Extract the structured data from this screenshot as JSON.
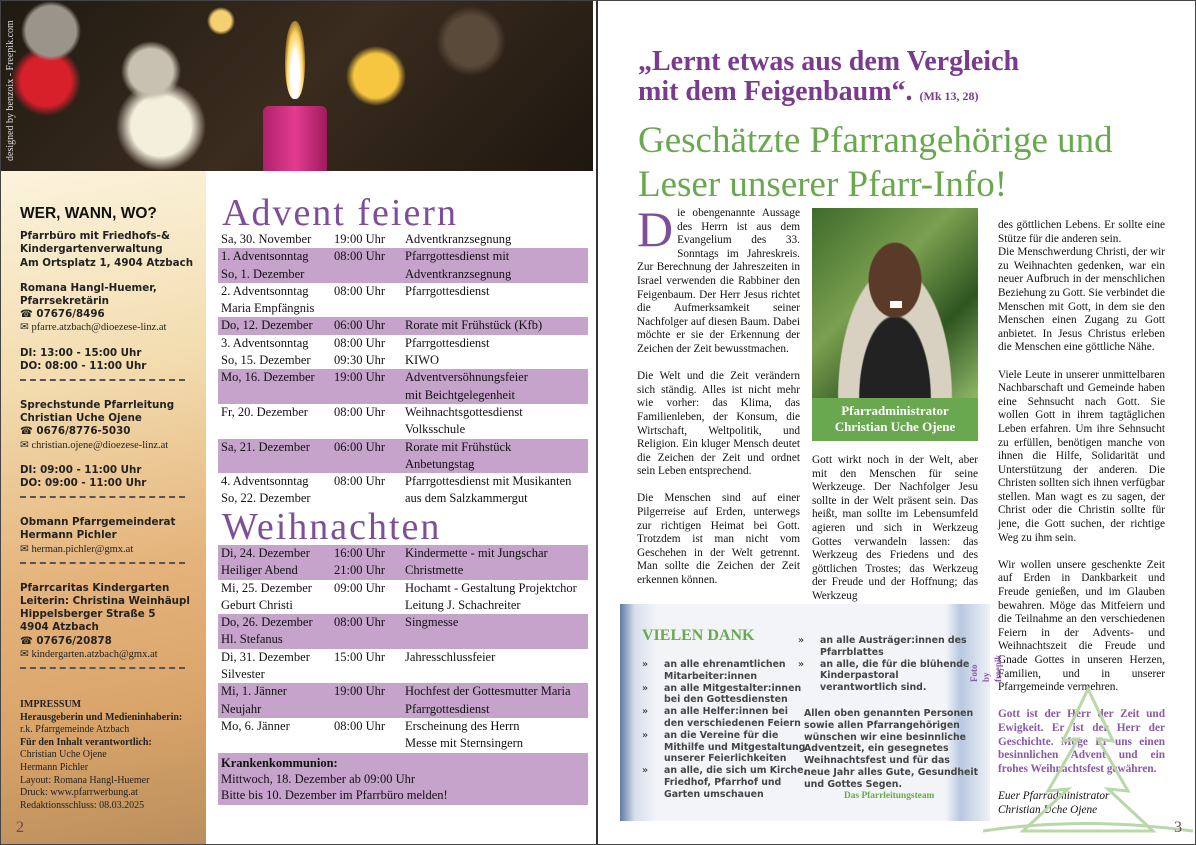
{
  "left": {
    "photo_credit": "designed by benzoix - Freepik.com",
    "sidebar": {
      "title": "WER, WANN, WO?",
      "office": [
        "Pfarrbüro mit Friedhofs-&",
        "Kindergartenverwaltung",
        "Am Ortsplatz 1, 4904 Atzbach"
      ],
      "secretary": {
        "name": "Romana Hangl-Huemer,",
        "role": "Pfarrsekretärin",
        "phone": "07676/8496",
        "email": "pfarre.atzbach@dioezese-linz.at",
        "hours": [
          "DI:  13:00 - 15:00  Uhr",
          "DO: 08:00 - 11:00  Uhr"
        ]
      },
      "leader": {
        "title": "Sprechstunde Pfarrleitung",
        "name": "Christian Uche Ojene",
        "phone": "0676/8776-5030",
        "email": "christian.ojene@dioezese-linz.at",
        "hours": [
          "DI:   09:00 - 11:00 Uhr",
          "DO:  09:00 - 11:00 Uhr"
        ]
      },
      "council": {
        "title": "Obmann Pfarrgemeinderat",
        "name": "Hermann Pichler",
        "email": "herman.pichler@gmx.at"
      },
      "kindergarten": {
        "title": "Pfarrcaritas Kindergarten",
        "leader": "Leiterin: Christina Weinhäupl",
        "street": "Hippelsberger Straße 5",
        "city": "4904 Atzbach",
        "phone": "07676/20878",
        "email": "kindergarten.atzbach@gmx.at"
      },
      "impressum": {
        "title": "IMPRESSUM",
        "l1": "Herausgeberin und Medieninhaberin:",
        "l2": "r.k. Pfarrgemeinde Atzbach",
        "l3": "Für den Inhalt verantwortlich:",
        "l4": "Christian Uche Ojene",
        "l5": "Hermann Pichler",
        "l6": "Layout: Romana Hangl-Huemer",
        "l7": "Druck: www.pfarrwerbung.at",
        "l8": "Redaktionsschluss: 08.03.2025"
      }
    },
    "advent": {
      "title": "Advent feiern",
      "rows": [
        {
          "d": "Sa, 30. November",
          "t": "19:00 Uhr",
          "e": "Adventkranzsegnung"
        },
        {
          "d": "1. Adventsonntag",
          "t": "08:00 Uhr",
          "e": "Pfarrgottesdienst mit",
          "alt": true
        },
        {
          "d": "So, 1. Dezember",
          "t": "",
          "e": "Adventkranzsegnung",
          "alt": true
        },
        {
          "d": "2. Adventsonntag",
          "t": "08:00 Uhr",
          "e": "Pfarrgottesdienst"
        },
        {
          "d": "Maria Empfängnis",
          "t": "",
          "e": ""
        },
        {
          "d": "Do, 12. Dezember",
          "t": "06:00 Uhr",
          "e": "Rorate mit Frühstück (Kfb)",
          "alt": true
        },
        {
          "d": "3. Adventsonntag",
          "t": "08:00 Uhr",
          "e": "Pfarrgottesdienst"
        },
        {
          "d": "So, 15. Dezember",
          "t": "09:30 Uhr",
          "e": "KIWO"
        },
        {
          "d": "Mo, 16. Dezember",
          "t": "19:00 Uhr",
          "e": "Adventversöhnungsfeier",
          "alt": true
        },
        {
          "d": "",
          "t": "",
          "e": "mit Beichtgelegenheit",
          "alt": true
        },
        {
          "d": "Fr, 20. Dezember",
          "t": "08:00 Uhr",
          "e": "Weihnachtsgottesdienst"
        },
        {
          "d": "",
          "t": "",
          "e": "Volksschule"
        },
        {
          "d": "Sa, 21. Dezember",
          "t": "06:00 Uhr",
          "e": "Rorate mit Frühstück",
          "alt": true
        },
        {
          "d": "",
          "t": "",
          "e": "Anbetungstag",
          "alt": true
        },
        {
          "d": "4. Adventsonntag",
          "t": "08:00 Uhr",
          "e": "Pfarrgottesdienst mit Musikanten"
        },
        {
          "d": "So, 22. Dezember",
          "t": "",
          "e": "aus dem Salzkammergut"
        }
      ]
    },
    "christmas": {
      "title": "Weihnachten",
      "rows": [
        {
          "d": "Di, 24. Dezember",
          "t": "16:00 Uhr",
          "e": "Kindermette - mit Jungschar",
          "alt": true
        },
        {
          "d": "Heiliger Abend",
          "t": "21:00 Uhr",
          "e": "Christmette",
          "alt": true
        },
        {
          "d": "Mi, 25. Dezember",
          "t": "09:00 Uhr",
          "e": "Hochamt - Gestaltung Projektchor"
        },
        {
          "d": "Geburt Christi",
          "t": "",
          "e": "Leitung J. Schachreiter"
        },
        {
          "d": "Do, 26. Dezember",
          "t": "08:00 Uhr",
          "e": "Singmesse",
          "alt": true
        },
        {
          "d": "Hl. Stefanus",
          "t": "",
          "e": "",
          "alt": true
        },
        {
          "d": "Di, 31. Dezember",
          "t": "15:00 Uhr",
          "e": "Jahresschlussfeier"
        },
        {
          "d": "Silvester",
          "t": "",
          "e": ""
        },
        {
          "d": "Mi, 1. Jänner",
          "t": "19:00 Uhr",
          "e": "Hochfest der Gottesmutter Maria",
          "alt": true
        },
        {
          "d": "Neujahr",
          "t": "",
          "e": "Pfarrgottesdienst",
          "alt": true
        },
        {
          "d": "Mo, 6. Jänner",
          "t": "08:00 Uhr",
          "e": "Erscheinung des Herrn"
        },
        {
          "d": "",
          "t": "",
          "e": "Messe mit Sternsingern"
        }
      ],
      "sick": {
        "title": "Krankenkommunion:",
        "l1": "Mittwoch, 18. Dezember ab 09:00 Uhr",
        "l2": "Bitte bis 10. Dezember im Pfarrbüro melden!"
      }
    },
    "page_number": "2"
  },
  "right": {
    "quote": "„Lernt etwas aus dem Vergleich mit dem Feigenbaum“.",
    "quote_ref": "(Mk 13, 28)",
    "greeting": "Geschätzte Pfarrangehörige und Leser unserer Pfarr-Info!",
    "drop_cap": "D",
    "col1": [
      "ie obengenannte Aussage des Herrn ist aus dem Evangelium des 33. Sonntags im Jahreskreis. Zur Berechnung der Jahreszeiten in Israel verwenden die Rabbiner den Feigenbaum. Der Herr Jesus richtet die Aufmerksamkeit seiner Nachfolger auf diesen Baum. Dabei möchte er sie der Erkennung der Zeichen der Zeit bewusstmachen.",
      "Die Welt und die Zeit verändern sich ständig. Alles ist nicht mehr wie vorher: das Klima, das Familienleben, der Konsum, die Wirtschaft, Weltpolitik, und Religion. Ein kluger Mensch deutet die Zeichen der Zeit und ordnet sein Leben entsprechend.",
      "Die Menschen sind auf einer Pilgerreise auf Erden, unterwegs zur richtigen Heimat bei Gott. Trotzdem ist man nicht vom Geschehen in der Welt getrennt. Man sollte die Zeichen der Zeit erkennen können."
    ],
    "photo_caption": [
      "Pfarradministrator",
      "Christian Uche Ojene"
    ],
    "col2": "Gott wirkt noch in der Welt, aber mit den Menschen für seine Werkzeuge. Der Nachfolger Jesu sollte in der Welt präsent sein. Das heißt, man sollte im Lebensumfeld agieren und sich in Werkzeug Gottes verwandeln lassen: das Werkzeug des Friedens und des göttlichen Trostes; das Werkzeug der Freude und der Hoffnung; das Werkzeug",
    "col3": [
      "des göttlichen Lebens. Er sollte eine Stütze für die anderen sein.",
      "Die Menschwerdung Christi, der wir zu Weihnachten gedenken, war ein neuer Aufbruch in der menschlichen Beziehung zu Gott. Sie verbindet die Menschen mit Gott, in dem sie den Menschen einen Zugang zu Gott anbietet. In Jesus Christus erleben die Menschen eine göttliche Nähe.",
      "Viele Leute in unserer unmittelbaren Nachbarschaft und Gemeinde haben eine Sehnsucht nach Gott. Sie wollen Gott in ihrem tagtäglichen Leben erfahren. Um ihre Sehnsucht zu erfüllen, benötigen manche von ihnen die Hilfe, Solidarität und Unterstützung der anderen. Die Christen sollten sich ihnen verfügbar stellen. Man wagt es zu sagen, der Christ  oder die Christin sollte für jene, die Gott suchen, der richtige Weg zu ihm sein.",
      "Wir wollen unsere geschenkte Zeit auf Erden in Dankbarkeit und Freude genießen, und im Glauben bewahren. Möge das Mitfeiern und die Teilnahme an den verschiedenen Feiern in der Advents- und Weihnachtszeit die Freude und Gnade Gottes in unseren Herzen, Familien, und in unserer Pfarrgemeinde vermehren."
    ],
    "closing": "Gott ist der Herr der Zeit und Ewigkeit. Er ist der Herr der Geschichte. Möge Er uns einen besinnlichen Advent und ein frohes Weihnachtsfest gewähren.",
    "signature": [
      "Euer Pfarradministrator",
      "Christian Uche Ojene"
    ],
    "thanks": {
      "title": "VIELEN DANK",
      "items_left": [
        "an alle ehrenamtlichen Mitarbeiter:innen",
        "an alle Mitgestalter:innen bei den Gottesdiensten",
        "an alle Helfer:innen bei den verschiedenen Feiern",
        "an die Vereine für die Mithilfe und Mitgestaltung unserer Feierlichkeiten",
        "an alle, die sich um Kirche, Friedhof, Pfarrhof und Garten umschauen"
      ],
      "items_right": [
        "an alle Austräger:innen des Pfarrblattes",
        "an alle, die für die blühende Kinderpastoral verantwortlich sind."
      ],
      "wish": "Allen oben genannten Personen sowie allen Pfarrangehörigen wünschen wir eine besinnliche Adventzeit, ein gesegnetes Weihnachtsfest und für das neue Jahr alles Gute, Gesundheit und Gottes Segen.",
      "signature": "Das Pfarrleitungsteam",
      "photo_credit": "Foto by freepik"
    },
    "page_number": "3"
  },
  "colors": {
    "purple": "#7d4f99",
    "green": "#6aa84f",
    "row_highlight": "#c5a3cb"
  }
}
